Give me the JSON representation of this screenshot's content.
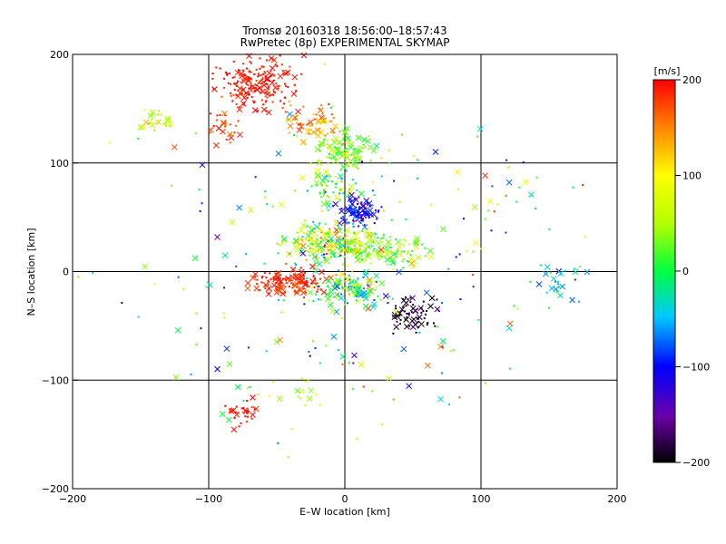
{
  "chart_data": {
    "type": "scatter",
    "title": "Tromsø 20160318 18:56:00–18:57:43",
    "subtitle": "RwPretec (8p) EXPERIMENTAL SKYMAP",
    "xlabel": "E–W location [km]",
    "ylabel": "N–S location [km]",
    "xlim": [
      -200,
      200
    ],
    "ylim": [
      -200,
      200
    ],
    "xticks": [
      "−200",
      "−100",
      "0",
      "100",
      "200"
    ],
    "yticks": [
      "−200",
      "−100",
      "0",
      "100",
      "200"
    ],
    "grid": true,
    "colorbar": {
      "label": "[m/s]",
      "range": [
        -200,
        200
      ],
      "ticks": [
        "200",
        "100",
        "0",
        "−100",
        "−200"
      ],
      "colormap": [
        "#000000",
        "#6a00a8",
        "#0000ff",
        "#00c8ff",
        "#00ff40",
        "#ffff00",
        "#ff8000",
        "#ff0000"
      ]
    },
    "clusters": [
      {
        "cx": -65,
        "cy": 175,
        "sx": 20,
        "sy": 18,
        "n": 200,
        "v": 190,
        "vs": 15
      },
      {
        "cx": -25,
        "cy": 135,
        "sx": 15,
        "sy": 12,
        "n": 70,
        "v": 140,
        "vs": 40
      },
      {
        "cx": -90,
        "cy": 130,
        "sx": 10,
        "sy": 10,
        "n": 25,
        "v": 180,
        "vs": 30
      },
      {
        "cx": 0,
        "cy": 110,
        "sx": 15,
        "sy": 12,
        "n": 110,
        "v": 40,
        "vs": 35
      },
      {
        "cx": -10,
        "cy": 80,
        "sx": 15,
        "sy": 10,
        "n": 60,
        "v": 20,
        "vs": 60
      },
      {
        "cx": 10,
        "cy": 55,
        "sx": 10,
        "sy": 10,
        "n": 110,
        "v": -105,
        "vs": 35
      },
      {
        "cx": -10,
        "cy": 25,
        "sx": 25,
        "sy": 12,
        "n": 250,
        "v": 60,
        "vs": 90
      },
      {
        "cx": 30,
        "cy": 20,
        "sx": 20,
        "sy": 10,
        "n": 110,
        "v": 40,
        "vs": 40
      },
      {
        "cx": -40,
        "cy": -10,
        "sx": 20,
        "sy": 8,
        "n": 160,
        "v": 185,
        "vs": 20
      },
      {
        "cx": 5,
        "cy": -15,
        "sx": 20,
        "sy": 12,
        "n": 120,
        "v": 0,
        "vs": 100
      },
      {
        "cx": 50,
        "cy": -40,
        "sx": 12,
        "sy": 12,
        "n": 70,
        "v": -190,
        "vs": 15
      },
      {
        "cx": -75,
        "cy": -130,
        "sx": 8,
        "sy": 8,
        "n": 30,
        "v": 190,
        "vs": 10
      },
      {
        "cx": -40,
        "cy": -110,
        "sx": 20,
        "sy": 10,
        "n": 20,
        "v": 60,
        "vs": 60
      },
      {
        "cx": -140,
        "cy": 140,
        "sx": 8,
        "sy": 6,
        "n": 30,
        "v": 80,
        "vs": 40
      },
      {
        "cx": 160,
        "cy": -10,
        "sx": 12,
        "sy": 15,
        "n": 30,
        "v": -40,
        "vs": 40
      },
      {
        "cx": 120,
        "cy": 70,
        "sx": 30,
        "sy": 30,
        "n": 30,
        "v": 0,
        "vs": 120
      },
      {
        "cx": 0,
        "cy": 0,
        "sx": 110,
        "sy": 110,
        "n": 200,
        "v": 0,
        "vs": 120
      }
    ]
  }
}
